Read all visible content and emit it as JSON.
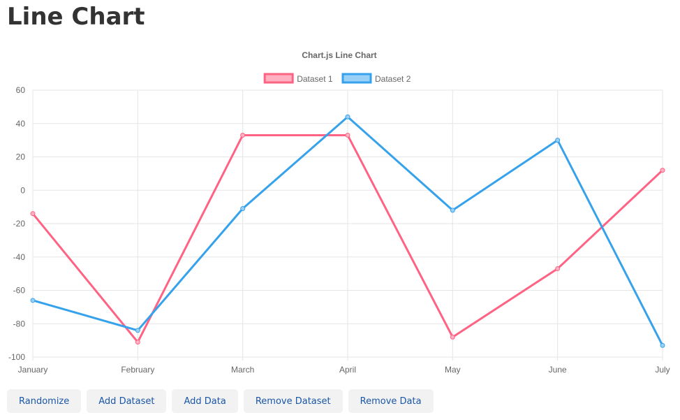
{
  "page": {
    "heading": "Line Chart"
  },
  "chart_data": {
    "type": "line",
    "title": "Chart.js Line Chart",
    "legend_position": "top",
    "grid": true,
    "xlabel": "",
    "ylabel": "",
    "categories": [
      "January",
      "February",
      "March",
      "April",
      "May",
      "June",
      "July"
    ],
    "ylim": [
      -100,
      60
    ],
    "yticks": [
      60,
      40,
      20,
      0,
      -20,
      -40,
      -60,
      -80,
      -100
    ],
    "series": [
      {
        "name": "Dataset 1",
        "color": "#ff6384",
        "fill": "#ffb1c1",
        "values": [
          -14,
          -91,
          33,
          33,
          -88,
          -47,
          12
        ]
      },
      {
        "name": "Dataset 2",
        "color": "#36a2eb",
        "fill": "#9ad0f5",
        "values": [
          -66,
          -84,
          -11,
          44,
          -12,
          30,
          -93
        ]
      }
    ]
  },
  "toolbar": {
    "randomize": "Randomize",
    "add_dataset": "Add Dataset",
    "add_data": "Add Data",
    "remove_dataset": "Remove Dataset",
    "remove_data": "Remove Data"
  }
}
